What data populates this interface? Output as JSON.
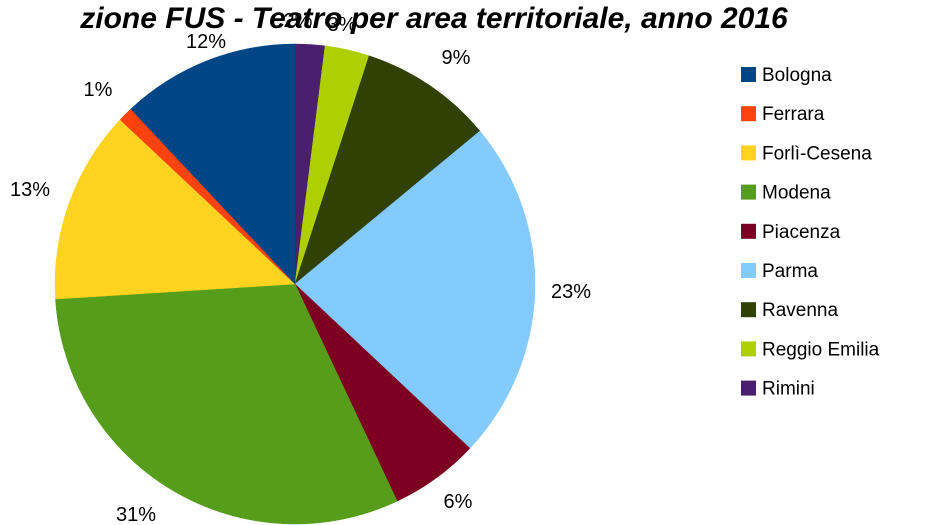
{
  "chart_data": {
    "type": "pie",
    "title": "zione FUS - Teatro per area territoriale, anno 2016",
    "start_angle_deg": 0,
    "direction": "clockwise",
    "legend_position": "right",
    "slices": [
      {
        "label": "Rimini",
        "value": 2,
        "display": "2%",
        "color": "#4B1F6F"
      },
      {
        "label": "Reggio Emilia",
        "value": 3,
        "display": "3%",
        "color": "#AECF00"
      },
      {
        "label": "Ravenna",
        "value": 9,
        "display": "9%",
        "color": "#314004"
      },
      {
        "label": "Parma",
        "value": 23,
        "display": "23%",
        "color": "#83CAFF"
      },
      {
        "label": "Piacenza",
        "value": 6,
        "display": "6%",
        "color": "#7E0021"
      },
      {
        "label": "Modena",
        "value": 31,
        "display": "31%",
        "color": "#579D1C"
      },
      {
        "label": "Forlì-Cesena",
        "value": 13,
        "display": "13%",
        "color": "#FFD320"
      },
      {
        "label": "Ferrara",
        "value": 1,
        "display": "1%",
        "color": "#FF420E"
      },
      {
        "label": "Bologna",
        "value": 12,
        "display": "12%",
        "color": "#004586"
      }
    ],
    "legend": [
      {
        "label": "Bologna",
        "color": "#004586"
      },
      {
        "label": "Ferrara",
        "color": "#FF420E"
      },
      {
        "label": "Forlì-Cesena",
        "color": "#FFD320"
      },
      {
        "label": "Modena",
        "color": "#579D1C"
      },
      {
        "label": "Piacenza",
        "color": "#7E0021"
      },
      {
        "label": "Parma",
        "color": "#83CAFF"
      },
      {
        "label": "Ravenna",
        "color": "#314004"
      },
      {
        "label": "Reggio Emilia",
        "color": "#AECF00"
      },
      {
        "label": "Rimini",
        "color": "#4B1F6F"
      }
    ]
  }
}
